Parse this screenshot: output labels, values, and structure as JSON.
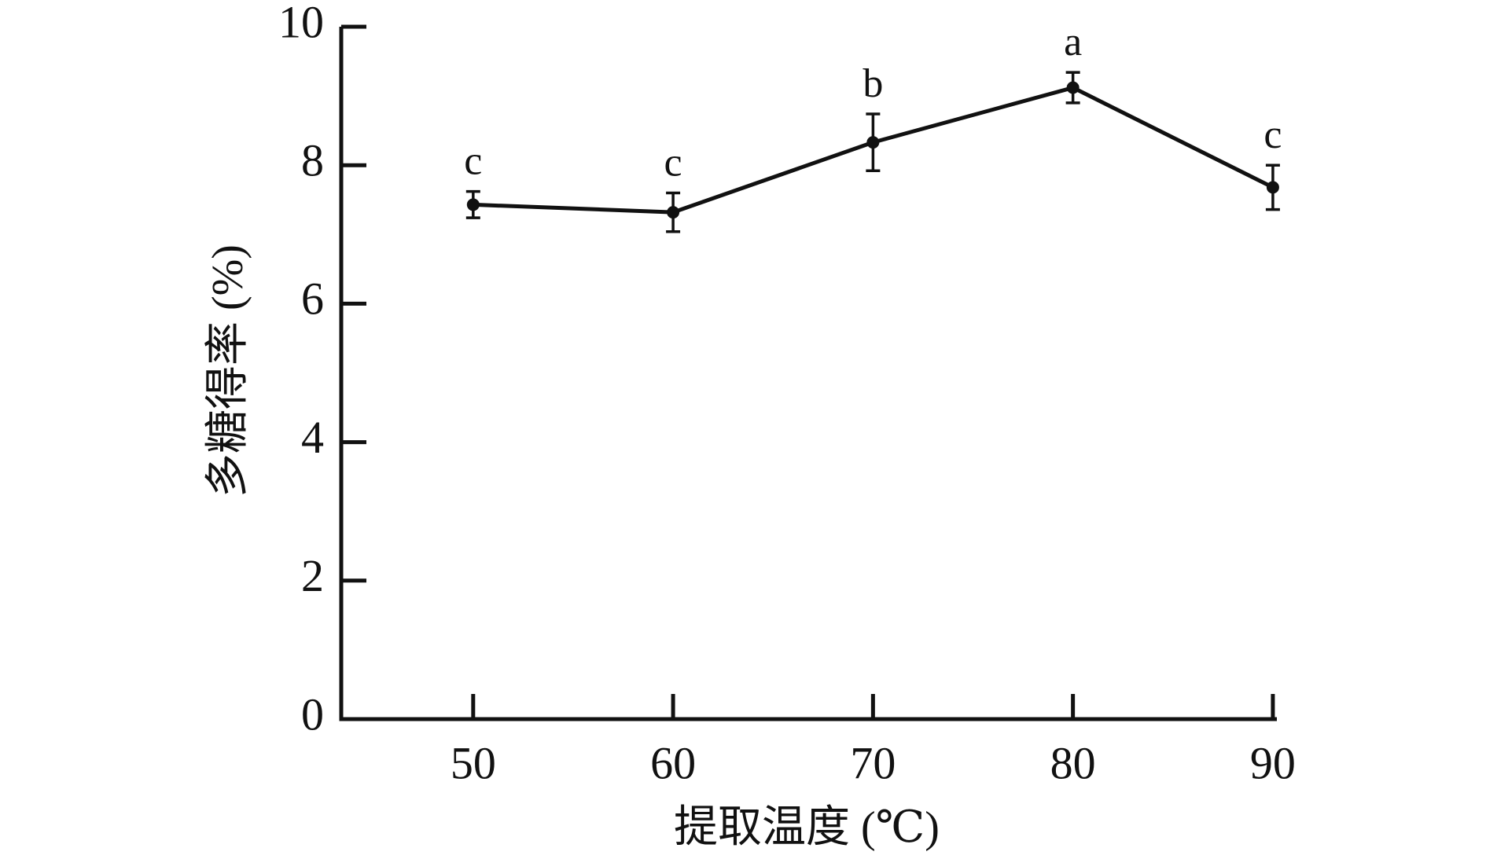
{
  "chart_data": {
    "type": "line",
    "xlabel": "提取温度 (℃)",
    "ylabel": "多糖得率 (%)",
    "x": [
      50,
      60,
      70,
      80,
      90
    ],
    "series": [
      {
        "color": "#111111",
        "values": [
          7.43,
          7.32,
          8.33,
          9.12,
          7.68
        ],
        "errors": [
          0.19,
          0.28,
          0.41,
          0.22,
          0.32
        ]
      }
    ],
    "annotations": [
      "c",
      "c",
      "b",
      "a",
      "c"
    ],
    "xlim": [
      43.4,
      90.2
    ],
    "xticks": [
      50,
      60,
      70,
      80,
      90
    ],
    "ylim": [
      0,
      10
    ],
    "yticks": [
      0,
      2,
      4,
      6,
      8,
      10
    ]
  }
}
